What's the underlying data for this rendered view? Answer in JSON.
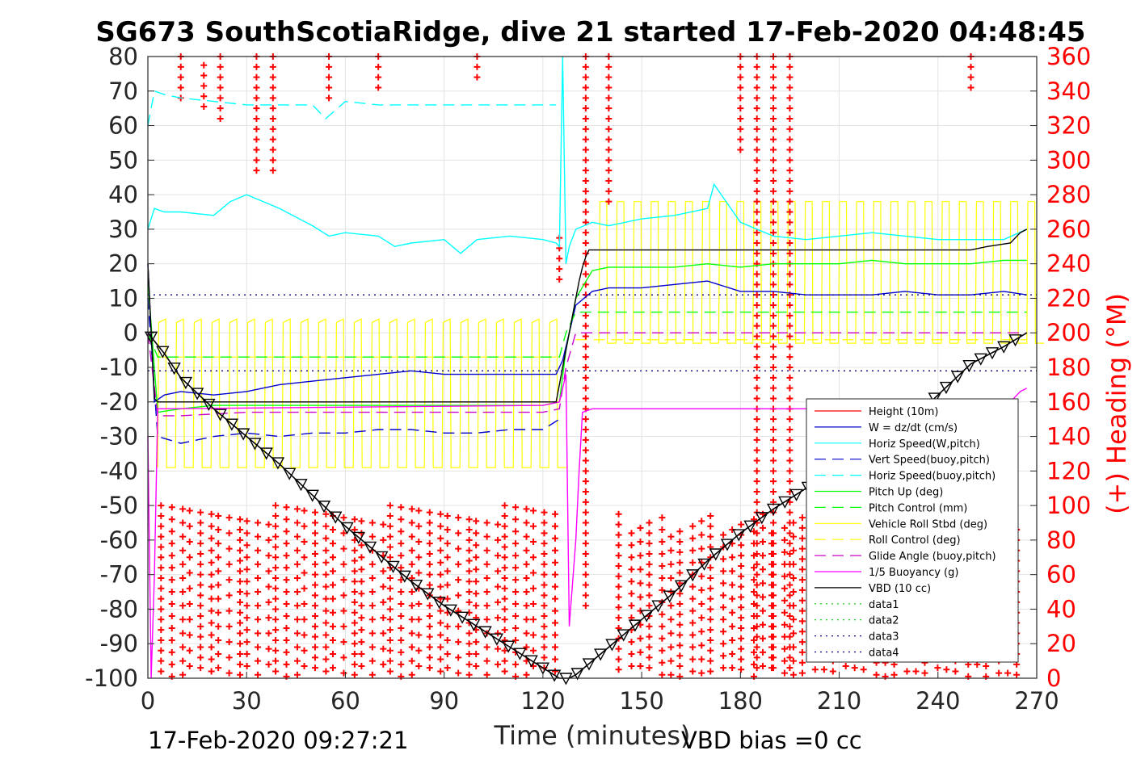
{
  "title": "SG673 SouthScotiaRidge, dive 21 started 17-Feb-2020 04:48:45",
  "footer_left": "17-Feb-2020 09:27:21",
  "footer_right": "VBD bias =0 cc",
  "chart_data": {
    "type": "line",
    "xlabel": "Time (minutes)",
    "ylabel": "",
    "y2label": "(+) Heading (°M)",
    "xlim": [
      0,
      270
    ],
    "ylim": [
      -100,
      80
    ],
    "y2lim": [
      0,
      360
    ],
    "x_ticks": [
      0,
      30,
      60,
      90,
      120,
      150,
      180,
      210,
      240,
      270
    ],
    "y_ticks": [
      80,
      70,
      60,
      50,
      40,
      30,
      20,
      10,
      0,
      -10,
      -20,
      -30,
      -40,
      -50,
      -60,
      -70,
      -80,
      -90,
      -100
    ],
    "y2_ticks": [
      360,
      340,
      320,
      300,
      280,
      260,
      240,
      220,
      200,
      180,
      160,
      140,
      120,
      100,
      80,
      60,
      40,
      20,
      0
    ],
    "grid": true,
    "legend_position": "lower-right",
    "colors": {
      "height": "#ff0000",
      "w": "#0000cc",
      "horiz_speed": "#00ffff",
      "pitch": "#00ff00",
      "roll": "#ffff00",
      "glide": "#cc00cc",
      "buoyancy": "#ff00ff",
      "vbd": "#000000",
      "heading": "#ff0000",
      "depth": "#000000"
    },
    "series": [
      {
        "name": "Height (10m)",
        "color": "#ff0000",
        "style": "solid",
        "x": [],
        "y": []
      },
      {
        "name": "W = dz/dt (cm/s)",
        "color": "#0000cc",
        "style": "solid",
        "x": [
          0,
          2,
          5,
          10,
          20,
          30,
          40,
          50,
          60,
          70,
          80,
          90,
          100,
          110,
          120,
          124,
          126,
          128,
          130,
          135,
          140,
          150,
          160,
          170,
          180,
          190,
          200,
          210,
          220,
          230,
          240,
          250,
          260,
          267
        ],
        "y": [
          20,
          -20,
          -18,
          -17,
          -18,
          -17,
          -15,
          -14,
          -13,
          -12,
          -11,
          -12,
          -12,
          -12,
          -12,
          -12,
          -8,
          0,
          8,
          12,
          13,
          13,
          14,
          15,
          12,
          12,
          11,
          11,
          11,
          12,
          11,
          11,
          12,
          11
        ]
      },
      {
        "name": "Horiz Speed(W,pitch)",
        "color": "#00ffff",
        "style": "solid",
        "x": [
          0,
          2,
          5,
          10,
          20,
          25,
          30,
          40,
          50,
          55,
          60,
          70,
          75,
          80,
          90,
          95,
          100,
          110,
          120,
          124,
          125,
          126,
          127,
          128,
          130,
          135,
          140,
          150,
          160,
          170,
          172,
          180,
          190,
          200,
          210,
          220,
          230,
          240,
          250,
          260,
          267
        ],
        "y": [
          30,
          36,
          35,
          35,
          34,
          38,
          40,
          36,
          31,
          28,
          29,
          28,
          25,
          26,
          27,
          23,
          27,
          28,
          27,
          26,
          25,
          80,
          20,
          25,
          30,
          32,
          31,
          33,
          34,
          36,
          43,
          32,
          28,
          27,
          28,
          29,
          28,
          27,
          27,
          27,
          30
        ]
      },
      {
        "name": "Vert Speed(buoy,pitch)",
        "color": "#0000cc",
        "style": "dashed",
        "x": [
          0,
          3,
          10,
          20,
          30,
          40,
          50,
          60,
          70,
          80,
          90,
          100,
          110,
          120,
          125
        ],
        "y": [
          10,
          -30,
          -32,
          -30,
          -29,
          -30,
          -29,
          -29,
          -28,
          -28,
          -29,
          -29,
          -28,
          -28,
          -25
        ]
      },
      {
        "name": "Horiz Speed(buoy,pitch)",
        "color": "#00ffff",
        "style": "dashed",
        "x": [
          0,
          2,
          5,
          10,
          20,
          30,
          40,
          50,
          54,
          60,
          70,
          80,
          90,
          100,
          110,
          120,
          124
        ],
        "y": [
          60,
          70,
          69,
          68,
          67,
          66,
          66,
          66,
          62,
          67,
          66,
          66,
          66,
          66,
          66,
          66,
          66
        ]
      },
      {
        "name": "Pitch Up (deg)",
        "color": "#00ff00",
        "style": "solid",
        "x": [
          0,
          3,
          10,
          20,
          30,
          40,
          50,
          60,
          70,
          80,
          90,
          100,
          110,
          120,
          125,
          127,
          130,
          135,
          140,
          150,
          160,
          170,
          180,
          190,
          200,
          210,
          220,
          230,
          240,
          250,
          260,
          267
        ],
        "y": [
          15,
          -23,
          -22,
          -21,
          -21,
          -21,
          -21,
          -21,
          -21,
          -21,
          -21,
          -21,
          -21,
          -21,
          -20,
          -5,
          10,
          18,
          19,
          19,
          19,
          20,
          19,
          20,
          20,
          20,
          21,
          20,
          20,
          20,
          21,
          21
        ]
      },
      {
        "name": "Pitch Control (mm)",
        "color": "#00ff00",
        "style": "dashed",
        "x": [
          0,
          3,
          10,
          120,
          125,
          127,
          130,
          267
        ],
        "y": [
          0,
          -7,
          -7,
          -7,
          -7,
          0,
          6,
          6
        ]
      },
      {
        "name": "Vehicle Roll Stbd (deg)",
        "color": "#ffff00",
        "style": "solid",
        "x": [],
        "y": []
      },
      {
        "name": "Roll Control (deg)",
        "color": "#ffff00",
        "style": "dashed",
        "x": [],
        "y": []
      },
      {
        "name": "Glide Angle (buoy,pitch)",
        "color": "#cc00cc",
        "style": "dashed",
        "x": [
          0,
          3,
          10,
          30,
          60,
          90,
          120,
          125,
          127,
          130,
          267
        ],
        "y": [
          0,
          -24,
          -24,
          -23,
          -23,
          -23,
          -23,
          -22,
          -10,
          0,
          0
        ]
      },
      {
        "name": "1/5 Buoyancy (g)",
        "color": "#ff00ff",
        "style": "solid",
        "x": [
          0,
          1,
          2,
          3,
          120,
          125,
          127,
          128,
          130,
          131,
          132,
          135,
          150,
          200,
          260,
          265,
          267
        ],
        "y": [
          -30,
          -100,
          -70,
          -22,
          -21,
          -20,
          -12,
          -85,
          -60,
          -40,
          -23,
          -22,
          -22,
          -22,
          -22,
          -17,
          -16
        ]
      },
      {
        "name": "VBD (10 cc)",
        "color": "#000000",
        "style": "solid",
        "x": [
          0,
          2,
          3,
          124,
          125,
          126,
          127,
          128,
          129,
          130,
          131,
          132,
          133,
          134,
          135,
          136,
          250,
          255,
          262,
          265,
          267
        ],
        "y": [
          20,
          -19,
          -20,
          -20,
          -15,
          -10,
          -5,
          0,
          5,
          10,
          15,
          19,
          22,
          24,
          24,
          24,
          24,
          25,
          26,
          29,
          30
        ]
      },
      {
        "name": "data1",
        "color": "#00cc00",
        "style": "dotted",
        "x": [],
        "y": []
      },
      {
        "name": "data2",
        "color": "#00cc00",
        "style": "dotted",
        "x": [],
        "y": []
      },
      {
        "name": "data3",
        "color": "#000080",
        "style": "dotted",
        "x": [
          0,
          270
        ],
        "y": [
          11,
          11
        ]
      },
      {
        "name": "data4",
        "color": "#000080",
        "style": "dotted",
        "x": [
          0,
          270
        ],
        "y": [
          -11,
          -11
        ]
      }
    ],
    "depth_profile": {
      "x": [
        0,
        5,
        10,
        20,
        30,
        40,
        50,
        60,
        70,
        80,
        90,
        100,
        110,
        120,
        125,
        128,
        130,
        135,
        140,
        150,
        160,
        170,
        180,
        190,
        200,
        210,
        220,
        230,
        240,
        250,
        260,
        267
      ],
      "y": [
        0,
        -6,
        -13,
        -22,
        -30,
        -38,
        -47,
        -56,
        -64,
        -72,
        -79,
        -85,
        -91,
        -97,
        -100,
        -100,
        -99,
        -95,
        -91,
        -83,
        -75,
        -66,
        -58,
        -51,
        -45,
        -39,
        -33,
        -27,
        -18,
        -9,
        -4,
        0
      ]
    }
  }
}
